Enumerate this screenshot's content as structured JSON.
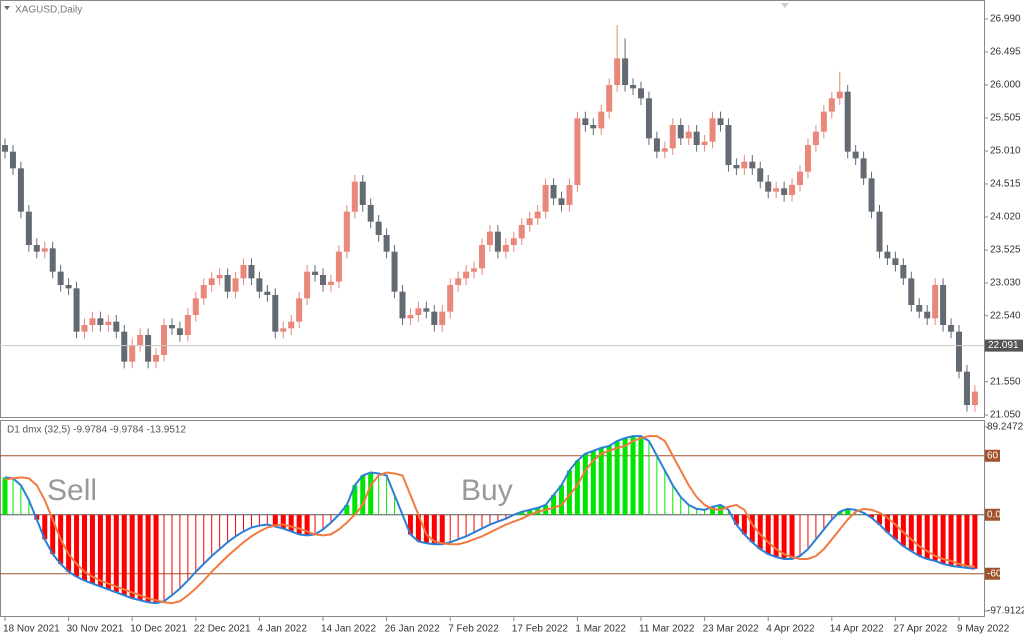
{
  "chart_data": [
    {
      "type": "candlestick",
      "title": "XAGUSD,Daily",
      "categories": [
        "18 Nov 2021",
        null,
        null,
        null,
        null,
        null,
        null,
        null,
        "30 Nov 2021",
        null,
        null,
        null,
        null,
        null,
        null,
        null,
        "10 Dec 2021",
        null,
        null,
        null,
        null,
        null,
        null,
        null,
        "22 Dec 2021",
        null,
        null,
        null,
        null,
        null,
        null,
        null,
        "4 Jan 2022",
        null,
        null,
        null,
        null,
        null,
        null,
        null,
        "14 Jan 2022",
        null,
        null,
        null,
        null,
        null,
        null,
        null,
        "26 Jan 2022",
        null,
        null,
        null,
        null,
        null,
        null,
        null,
        "7 Feb 2022",
        null,
        null,
        null,
        null,
        null,
        null,
        null,
        "17 Feb 2022",
        null,
        null,
        null,
        null,
        null,
        null,
        null,
        "1 Mar 2022",
        null,
        null,
        null,
        null,
        null,
        null,
        null,
        "11 Mar 2022",
        null,
        null,
        null,
        null,
        null,
        null,
        null,
        "23 Mar 2022",
        null,
        null,
        null,
        null,
        null,
        null,
        null,
        "4 Apr 2022",
        null,
        null,
        null,
        null,
        null,
        null,
        null,
        "14 Apr 2022",
        null,
        null,
        null,
        null,
        null,
        null,
        null,
        "27 Apr 2022",
        null,
        null,
        null,
        null,
        null,
        null,
        null,
        "9 May 2022",
        null,
        null
      ],
      "candles": [
        [
          25.1,
          25.2,
          24.9,
          25.0
        ],
        [
          25.0,
          25.1,
          24.65,
          24.75
        ],
        [
          24.75,
          24.85,
          24.0,
          24.1
        ],
        [
          24.1,
          24.2,
          23.5,
          23.6
        ],
        [
          23.6,
          23.7,
          23.4,
          23.5
        ],
        [
          23.5,
          23.65,
          23.4,
          23.55
        ],
        [
          23.55,
          23.65,
          23.1,
          23.2
        ],
        [
          23.2,
          23.3,
          22.9,
          23.0
        ],
        [
          23.0,
          23.1,
          22.85,
          22.95
        ],
        [
          22.95,
          23.05,
          22.2,
          22.3
        ],
        [
          22.3,
          22.5,
          22.2,
          22.4
        ],
        [
          22.4,
          22.6,
          22.3,
          22.5
        ],
        [
          22.5,
          22.6,
          22.3,
          22.4
        ],
        [
          22.4,
          22.55,
          22.3,
          22.45
        ],
        [
          22.45,
          22.55,
          22.2,
          22.3
        ],
        [
          22.3,
          22.4,
          21.75,
          21.85
        ],
        [
          21.85,
          22.2,
          21.75,
          22.1
        ],
        [
          22.1,
          22.35,
          22.0,
          22.25
        ],
        [
          22.25,
          22.35,
          21.75,
          21.85
        ],
        [
          21.85,
          22.05,
          21.75,
          21.95
        ],
        [
          21.95,
          22.5,
          21.85,
          22.4
        ],
        [
          22.4,
          22.5,
          22.25,
          22.35
        ],
        [
          22.35,
          22.45,
          22.15,
          22.25
        ],
        [
          22.25,
          22.65,
          22.15,
          22.55
        ],
        [
          22.55,
          22.9,
          22.45,
          22.8
        ],
        [
          22.8,
          23.1,
          22.7,
          23.0
        ],
        [
          23.0,
          23.2,
          22.9,
          23.1
        ],
        [
          23.1,
          23.25,
          23.0,
          23.15
        ],
        [
          23.15,
          23.25,
          22.8,
          22.9
        ],
        [
          22.9,
          23.2,
          22.8,
          23.1
        ],
        [
          23.1,
          23.4,
          23.0,
          23.3
        ],
        [
          23.3,
          23.4,
          23.0,
          23.1
        ],
        [
          23.1,
          23.2,
          22.8,
          22.9
        ],
        [
          22.9,
          23.0,
          22.75,
          22.85
        ],
        [
          22.85,
          22.95,
          22.2,
          22.3
        ],
        [
          22.3,
          22.45,
          22.2,
          22.35
        ],
        [
          22.35,
          22.55,
          22.25,
          22.45
        ],
        [
          22.45,
          22.9,
          22.35,
          22.8
        ],
        [
          22.8,
          23.3,
          22.7,
          23.2
        ],
        [
          23.2,
          23.3,
          23.05,
          23.15
        ],
        [
          23.15,
          23.25,
          22.9,
          23.0
        ],
        [
          23.0,
          23.15,
          22.9,
          23.05
        ],
        [
          23.05,
          23.6,
          22.95,
          23.5
        ],
        [
          23.5,
          24.2,
          23.4,
          24.1
        ],
        [
          24.1,
          24.65,
          24.0,
          24.55
        ],
        [
          24.55,
          24.65,
          24.1,
          24.2
        ],
        [
          24.2,
          24.3,
          23.85,
          23.95
        ],
        [
          23.95,
          24.05,
          23.65,
          23.75
        ],
        [
          23.75,
          23.85,
          23.4,
          23.5
        ],
        [
          23.5,
          23.6,
          22.8,
          22.9
        ],
        [
          22.9,
          23.0,
          22.4,
          22.5
        ],
        [
          22.5,
          22.65,
          22.4,
          22.55
        ],
        [
          22.55,
          22.75,
          22.45,
          22.65
        ],
        [
          22.65,
          22.75,
          22.5,
          22.6
        ],
        [
          22.6,
          22.7,
          22.3,
          22.4
        ],
        [
          22.4,
          22.7,
          22.3,
          22.6
        ],
        [
          22.6,
          23.1,
          22.5,
          23.0
        ],
        [
          23.0,
          23.2,
          22.9,
          23.1
        ],
        [
          23.1,
          23.3,
          23.0,
          23.2
        ],
        [
          23.2,
          23.35,
          23.1,
          23.25
        ],
        [
          23.25,
          23.7,
          23.15,
          23.6
        ],
        [
          23.6,
          23.9,
          23.5,
          23.8
        ],
        [
          23.8,
          23.9,
          23.4,
          23.5
        ],
        [
          23.5,
          23.7,
          23.4,
          23.6
        ],
        [
          23.6,
          23.8,
          23.5,
          23.7
        ],
        [
          23.7,
          24.0,
          23.6,
          23.9
        ],
        [
          23.9,
          24.1,
          23.8,
          24.0
        ],
        [
          24.0,
          24.2,
          23.9,
          24.1
        ],
        [
          24.1,
          24.6,
          24.0,
          24.5
        ],
        [
          24.5,
          24.6,
          24.2,
          24.3
        ],
        [
          24.3,
          24.4,
          24.1,
          24.2
        ],
        [
          24.2,
          24.6,
          24.1,
          24.5
        ],
        [
          24.5,
          25.6,
          24.4,
          25.5
        ],
        [
          25.5,
          25.6,
          25.3,
          25.4
        ],
        [
          25.4,
          25.5,
          25.25,
          25.35
        ],
        [
          25.35,
          25.7,
          25.25,
          25.6
        ],
        [
          25.6,
          26.1,
          25.5,
          26.0
        ],
        [
          26.0,
          26.9,
          25.9,
          26.4
        ],
        [
          26.4,
          26.7,
          25.9,
          26.0
        ],
        [
          26.0,
          26.1,
          25.85,
          25.95
        ],
        [
          25.95,
          26.05,
          25.7,
          25.8
        ],
        [
          25.8,
          25.9,
          25.1,
          25.2
        ],
        [
          25.2,
          25.3,
          24.9,
          25.0
        ],
        [
          25.0,
          25.15,
          24.9,
          25.05
        ],
        [
          25.05,
          25.5,
          24.95,
          25.4
        ],
        [
          25.4,
          25.5,
          25.1,
          25.2
        ],
        [
          25.2,
          25.4,
          25.1,
          25.3
        ],
        [
          25.3,
          25.4,
          25.0,
          25.1
        ],
        [
          25.1,
          25.25,
          25.0,
          25.15
        ],
        [
          25.15,
          25.6,
          25.05,
          25.5
        ],
        [
          25.5,
          25.6,
          25.3,
          25.4
        ],
        [
          25.4,
          25.5,
          24.7,
          24.8
        ],
        [
          24.8,
          24.9,
          24.65,
          24.75
        ],
        [
          24.75,
          24.95,
          24.65,
          24.85
        ],
        [
          24.85,
          24.95,
          24.65,
          24.75
        ],
        [
          24.75,
          24.85,
          24.45,
          24.55
        ],
        [
          24.55,
          24.65,
          24.3,
          24.4
        ],
        [
          24.4,
          24.55,
          24.3,
          24.45
        ],
        [
          24.45,
          24.55,
          24.25,
          24.35
        ],
        [
          24.35,
          24.6,
          24.25,
          24.5
        ],
        [
          24.5,
          24.8,
          24.4,
          24.7
        ],
        [
          24.7,
          25.2,
          24.6,
          25.1
        ],
        [
          25.1,
          25.4,
          25.0,
          25.3
        ],
        [
          25.3,
          25.7,
          25.2,
          25.6
        ],
        [
          25.6,
          25.9,
          25.5,
          25.8
        ],
        [
          25.8,
          26.2,
          25.7,
          25.9
        ],
        [
          25.9,
          26.0,
          24.9,
          25.0
        ],
        [
          25.0,
          25.1,
          24.8,
          24.9
        ],
        [
          24.9,
          25.0,
          24.5,
          24.6
        ],
        [
          24.6,
          24.7,
          24.0,
          24.1
        ],
        [
          24.1,
          24.2,
          23.4,
          23.5
        ],
        [
          23.5,
          23.6,
          23.3,
          23.4
        ],
        [
          23.4,
          23.5,
          23.2,
          23.3
        ],
        [
          23.3,
          23.4,
          23.0,
          23.1
        ],
        [
          23.1,
          23.2,
          22.6,
          22.7
        ],
        [
          22.7,
          22.8,
          22.5,
          22.6
        ],
        [
          22.6,
          22.7,
          22.4,
          22.5
        ],
        [
          22.5,
          23.1,
          22.4,
          23.0
        ],
        [
          23.0,
          23.1,
          22.3,
          22.4
        ],
        [
          22.4,
          22.5,
          22.2,
          22.3
        ],
        [
          22.3,
          22.4,
          21.6,
          21.7
        ],
        [
          21.7,
          21.8,
          21.1,
          21.2
        ],
        [
          21.2,
          21.5,
          21.1,
          21.4
        ]
      ],
      "up_color": "#e8877a",
      "down_color": "#636a72",
      "ylim": [
        21.05,
        26.99
      ],
      "yticks": [
        {
          "value": 26.99,
          "label": "26.990"
        },
        {
          "value": 26.495,
          "label": "26.495"
        },
        {
          "value": 26.0,
          "label": "26.000"
        },
        {
          "value": 25.505,
          "label": "25.505"
        },
        {
          "value": 25.01,
          "label": "25.010"
        },
        {
          "value": 24.515,
          "label": "24.515"
        },
        {
          "value": 24.02,
          "label": "24.020"
        },
        {
          "value": 23.525,
          "label": "23.525"
        },
        {
          "value": 23.03,
          "label": "23.030"
        },
        {
          "value": 22.54,
          "label": "22.540"
        },
        {
          "value": 21.55,
          "label": "21.550"
        },
        {
          "value": 21.05,
          "label": "21.050"
        }
      ],
      "last_price": 22.091
    },
    {
      "type": "oscillator",
      "title": "D1 dmx (32,5) -9.9784 -9.9784 -13.9512",
      "series": [
        {
          "color": "#2a7fd6",
          "values": [
            38,
            37,
            30,
            15,
            -5,
            -25,
            -40,
            -50,
            -58,
            -63,
            -67,
            -70,
            -73,
            -76,
            -79,
            -82,
            -85,
            -87,
            -89,
            -90,
            -88,
            -82,
            -75,
            -67,
            -58,
            -50,
            -42,
            -35,
            -28,
            -22,
            -17,
            -13,
            -11,
            -10,
            -12,
            -14,
            -17,
            -20,
            -21,
            -20,
            -15,
            -8,
            0,
            10,
            30,
            40,
            43,
            42,
            40,
            20,
            0,
            -20,
            -27,
            -29,
            -30,
            -30,
            -28,
            -25,
            -22,
            -18,
            -14,
            -10,
            -7,
            -4,
            0,
            3,
            5,
            7,
            10,
            20,
            30,
            45,
            55,
            62,
            65,
            68,
            70,
            75,
            78,
            80,
            80,
            75,
            60,
            45,
            30,
            18,
            10,
            6,
            5,
            8,
            10,
            5,
            -10,
            -20,
            -28,
            -35,
            -40,
            -43,
            -45,
            -45,
            -42,
            -35,
            -25,
            -15,
            -5,
            3,
            6,
            5,
            2,
            -3,
            -10,
            -18,
            -25,
            -32,
            -37,
            -42,
            -45,
            -47,
            -50,
            -52,
            -53,
            -54,
            -55
          ]
        },
        {
          "color": "#f07a40",
          "values": [
            36,
            37,
            38,
            37,
            30,
            15,
            -5,
            -25,
            -40,
            -50,
            -58,
            -63,
            -67,
            -70,
            -73,
            -76,
            -79,
            -82,
            -85,
            -87,
            -89,
            -90,
            -88,
            -82,
            -75,
            -67,
            -58,
            -50,
            -42,
            -35,
            -28,
            -22,
            -17,
            -13,
            -11,
            -10,
            -12,
            -14,
            -17,
            -20,
            -21,
            -20,
            -15,
            -8,
            0,
            10,
            30,
            40,
            43,
            42,
            40,
            20,
            0,
            -20,
            -27,
            -29,
            -30,
            -30,
            -28,
            -25,
            -22,
            -18,
            -14,
            -10,
            -7,
            -4,
            0,
            3,
            5,
            7,
            10,
            20,
            30,
            45,
            55,
            62,
            65,
            68,
            70,
            75,
            78,
            80,
            80,
            75,
            60,
            45,
            30,
            18,
            10,
            6,
            5,
            8,
            10,
            5,
            -10,
            -20,
            -28,
            -35,
            -40,
            -43,
            -45,
            -45,
            -42,
            -35,
            -25,
            -15,
            -5,
            3,
            6,
            5,
            2,
            -3,
            -10,
            -18,
            -25,
            -32,
            -37,
            -42,
            -45,
            -47,
            -50,
            -52,
            -53
          ]
        }
      ],
      "bar_up_color": "#00e600",
      "bar_down_color": "#ff0000",
      "ylim": [
        -97.9122,
        89.2472
      ],
      "yticks": [
        89.2472,
        60,
        {
          "value": 0,
          "label": "0.00"
        },
        -60,
        -97.9122
      ],
      "levels": [
        60,
        0,
        -60
      ],
      "level_color": "#a0522d",
      "annotations": [
        "Sell",
        "Buy"
      ]
    }
  ]
}
